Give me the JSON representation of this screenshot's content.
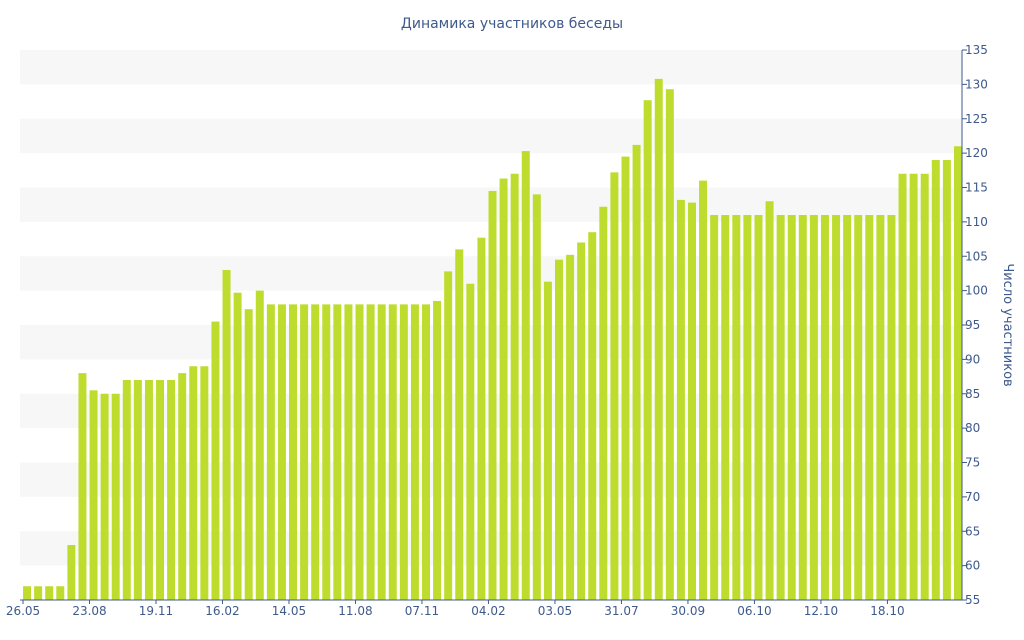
{
  "chart_data": {
    "type": "bar",
    "title": "Динамика участников беседы",
    "ylabel": "Число участников",
    "xlabel": "",
    "ylim": [
      55,
      135
    ],
    "y_ticks": [
      55,
      60,
      65,
      70,
      75,
      80,
      85,
      90,
      95,
      100,
      105,
      110,
      115,
      120,
      125,
      130,
      135
    ],
    "y_axis_side": "right",
    "x_tick_labels": [
      {
        "label": "26.05",
        "index": 0
      },
      {
        "label": "23.08",
        "index": 6
      },
      {
        "label": "19.11",
        "index": 12
      },
      {
        "label": "16.02",
        "index": 18
      },
      {
        "label": "14.05",
        "index": 24
      },
      {
        "label": "11.08",
        "index": 30
      },
      {
        "label": "07.11",
        "index": 36
      },
      {
        "label": "04.02",
        "index": 42
      },
      {
        "label": "03.05",
        "index": 48
      },
      {
        "label": "31.07",
        "index": 54
      },
      {
        "label": "30.09",
        "index": 60
      },
      {
        "label": "06.10",
        "index": 66
      },
      {
        "label": "12.10",
        "index": 72
      },
      {
        "label": "18.10",
        "index": 78
      }
    ],
    "series": [
      {
        "color": "#bddc2e",
        "values": [
          57,
          57,
          57,
          57,
          63,
          88,
          85.5,
          85,
          85,
          87,
          87,
          87,
          87,
          87,
          88,
          89,
          89,
          95.5,
          103,
          99.7,
          97.3,
          100,
          98,
          98,
          98,
          98,
          98,
          98,
          98,
          98,
          98,
          98,
          98,
          98,
          98,
          98,
          98,
          98.5,
          102.8,
          106,
          101,
          107.7,
          114.5,
          116.3,
          117,
          120.3,
          114,
          101.3,
          104.5,
          105.2,
          107,
          108.5,
          112.2,
          117.2,
          119.5,
          121.2,
          127.7,
          130.8,
          129.3,
          113.2,
          112.8,
          116,
          111,
          111,
          111,
          111,
          111,
          113,
          111,
          111,
          111,
          111,
          111,
          111,
          111,
          111,
          111,
          111,
          111,
          117,
          117,
          117,
          119,
          119,
          121
        ]
      }
    ],
    "grid": "horizontal-bands",
    "band_color": "#f7f7f7"
  }
}
